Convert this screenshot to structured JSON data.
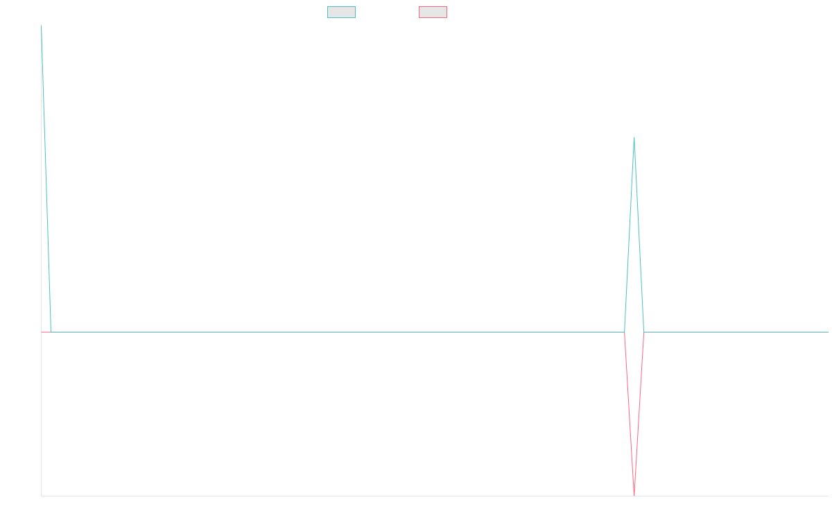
{
  "colors": {
    "background": "#ffffff",
    "axis": "#e5e5e5",
    "legend_fill": "#e6e6e6"
  },
  "chart_data": {
    "type": "line",
    "title": "",
    "xlabel": "",
    "ylabel": "",
    "grid": false,
    "legend_position": "top-center",
    "x": [
      0,
      1,
      2,
      3,
      4,
      5,
      6,
      7,
      8,
      9,
      10,
      11,
      12,
      13,
      14,
      15,
      16,
      17,
      18,
      19,
      20,
      21,
      22,
      23,
      24,
      25,
      26,
      27,
      28,
      29,
      30,
      31,
      32,
      33,
      34,
      35,
      36,
      37,
      38,
      39,
      40,
      41,
      42,
      43,
      44,
      45,
      46,
      47,
      48,
      49,
      50,
      51,
      52,
      53,
      54,
      55,
      56,
      57,
      58,
      59,
      60,
      61,
      62,
      63,
      64,
      65,
      66,
      67,
      68,
      69,
      70,
      71,
      72,
      73,
      74,
      75,
      76,
      77,
      78,
      79,
      80,
      81
    ],
    "ylim": [
      -1,
      1.87
    ],
    "series": [
      {
        "name": "",
        "color": "#4bc0c0",
        "values": [
          1.87,
          0,
          0,
          0,
          0,
          0,
          0,
          0,
          0,
          0,
          0,
          0,
          0,
          0,
          0,
          0,
          0,
          0,
          0,
          0,
          0,
          0,
          0,
          0,
          0,
          0,
          0,
          0,
          0,
          0,
          0,
          0,
          0,
          0,
          0,
          0,
          0,
          0,
          0,
          0,
          0,
          0,
          0,
          0,
          0,
          0,
          0,
          0,
          0,
          0,
          0,
          0,
          0,
          0,
          0,
          0,
          0,
          0,
          0,
          0,
          0,
          1.19,
          0,
          0,
          0,
          0,
          0,
          0,
          0,
          0,
          0,
          0,
          0,
          0,
          0,
          0,
          0,
          0,
          0,
          0,
          0,
          0
        ]
      },
      {
        "name": "",
        "color": "#ff6384",
        "values": [
          0,
          0,
          0,
          0,
          0,
          0,
          0,
          0,
          0,
          0,
          0,
          0,
          0,
          0,
          0,
          0,
          0,
          0,
          0,
          0,
          0,
          0,
          0,
          0,
          0,
          0,
          0,
          0,
          0,
          0,
          0,
          0,
          0,
          0,
          0,
          0,
          0,
          0,
          0,
          0,
          0,
          0,
          0,
          0,
          0,
          0,
          0,
          0,
          0,
          0,
          0,
          0,
          0,
          0,
          0,
          0,
          0,
          0,
          0,
          0,
          0,
          -1,
          0,
          0,
          0,
          0,
          0,
          0,
          0,
          0,
          0,
          0,
          0,
          0,
          0,
          0,
          0,
          0,
          0,
          0,
          0,
          0
        ]
      }
    ]
  }
}
